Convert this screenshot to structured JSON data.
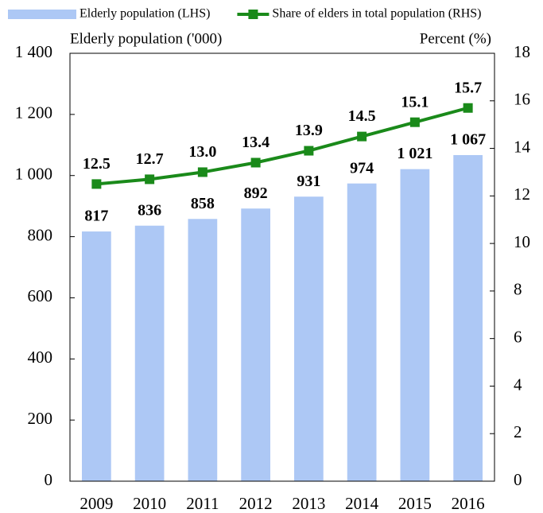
{
  "chart_data": {
    "type": "bar",
    "categories": [
      "2009",
      "2010",
      "2011",
      "2012",
      "2013",
      "2014",
      "2015",
      "2016"
    ],
    "y_axis_title": "Elderly population ('000)",
    "y2_axis_title": "Percent (%)",
    "series": [
      {
        "name": "Elderly population (LHS)",
        "type": "bar",
        "color": "#adc8f5",
        "label_color": "#1a1acc",
        "values": [
          817,
          836,
          858,
          892,
          931,
          974,
          1021,
          1067
        ],
        "value_labels": [
          "817",
          "836",
          "858",
          "892",
          "931",
          "974",
          "1 021",
          "1 067"
        ]
      },
      {
        "name": "Share of elders in total population (RHS)",
        "type": "line",
        "axis": "y2",
        "color": "#1a8a1a",
        "label_color": "#2a8a1a",
        "values": [
          12.5,
          12.7,
          13.0,
          13.4,
          13.9,
          14.5,
          15.1,
          15.7
        ],
        "value_labels": [
          "12.5",
          "12.7",
          "13.0",
          "13.4",
          "13.9",
          "14.5",
          "15.1",
          "15.7"
        ]
      }
    ],
    "ylim": [
      0,
      1400
    ],
    "yticks": [
      0,
      200,
      400,
      600,
      800,
      {
        "value": 1000,
        "label": "1 000"
      },
      {
        "value": 1200,
        "label": "1 200"
      },
      {
        "value": 1400,
        "label": "1 400"
      }
    ],
    "y2lim": [
      0,
      18
    ],
    "y2ticks": [
      0,
      2,
      4,
      6,
      8,
      10,
      12,
      14,
      16,
      18
    ],
    "grid": false
  }
}
